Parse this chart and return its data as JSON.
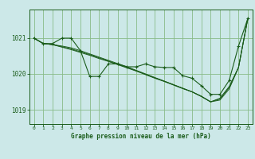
{
  "background_color": "#cce8e8",
  "plot_bg_color": "#cce8e8",
  "grid_color": "#88bb88",
  "line_color": "#1a5c1a",
  "title": "Graphe pression niveau de la mer (hPa)",
  "ylim": [
    1018.6,
    1021.8
  ],
  "yticks": [
    1019,
    1020,
    1021
  ],
  "xlim": [
    -0.5,
    23.5
  ],
  "xticks": [
    0,
    1,
    2,
    3,
    4,
    5,
    6,
    7,
    8,
    9,
    10,
    11,
    12,
    13,
    14,
    15,
    16,
    17,
    18,
    19,
    20,
    21,
    22,
    23
  ],
  "series_main": [
    1021.0,
    1020.85,
    1020.85,
    1021.0,
    1021.0,
    1020.65,
    1019.93,
    1019.93,
    1020.28,
    1020.28,
    1020.2,
    1020.2,
    1020.28,
    1020.2,
    1020.18,
    1020.18,
    1019.95,
    1019.88,
    1019.67,
    1019.43,
    1019.43,
    1019.82,
    1020.78,
    1021.55
  ],
  "series_trend1": [
    1021.0,
    1020.85,
    1020.82,
    1020.78,
    1020.73,
    1020.65,
    1020.56,
    1020.47,
    1020.38,
    1020.29,
    1020.2,
    1020.1,
    1020.0,
    1019.9,
    1019.8,
    1019.7,
    1019.6,
    1019.5,
    1019.38,
    1019.22,
    1019.27,
    1019.58,
    1020.18,
    1021.55
  ],
  "series_trend2": [
    1021.0,
    1020.85,
    1020.82,
    1020.75,
    1020.68,
    1020.6,
    1020.52,
    1020.43,
    1020.35,
    1020.26,
    1020.17,
    1020.08,
    1019.98,
    1019.88,
    1019.79,
    1019.69,
    1019.59,
    1019.5,
    1019.37,
    1019.22,
    1019.3,
    1019.62,
    1020.18,
    1021.55
  ],
  "series_trend3": [
    1021.0,
    1020.85,
    1020.82,
    1020.76,
    1020.7,
    1020.62,
    1020.54,
    1020.45,
    1020.36,
    1020.27,
    1020.18,
    1020.09,
    1019.99,
    1019.89,
    1019.8,
    1019.7,
    1019.6,
    1019.5,
    1019.37,
    1019.22,
    1019.32,
    1019.65,
    1020.18,
    1021.55
  ]
}
